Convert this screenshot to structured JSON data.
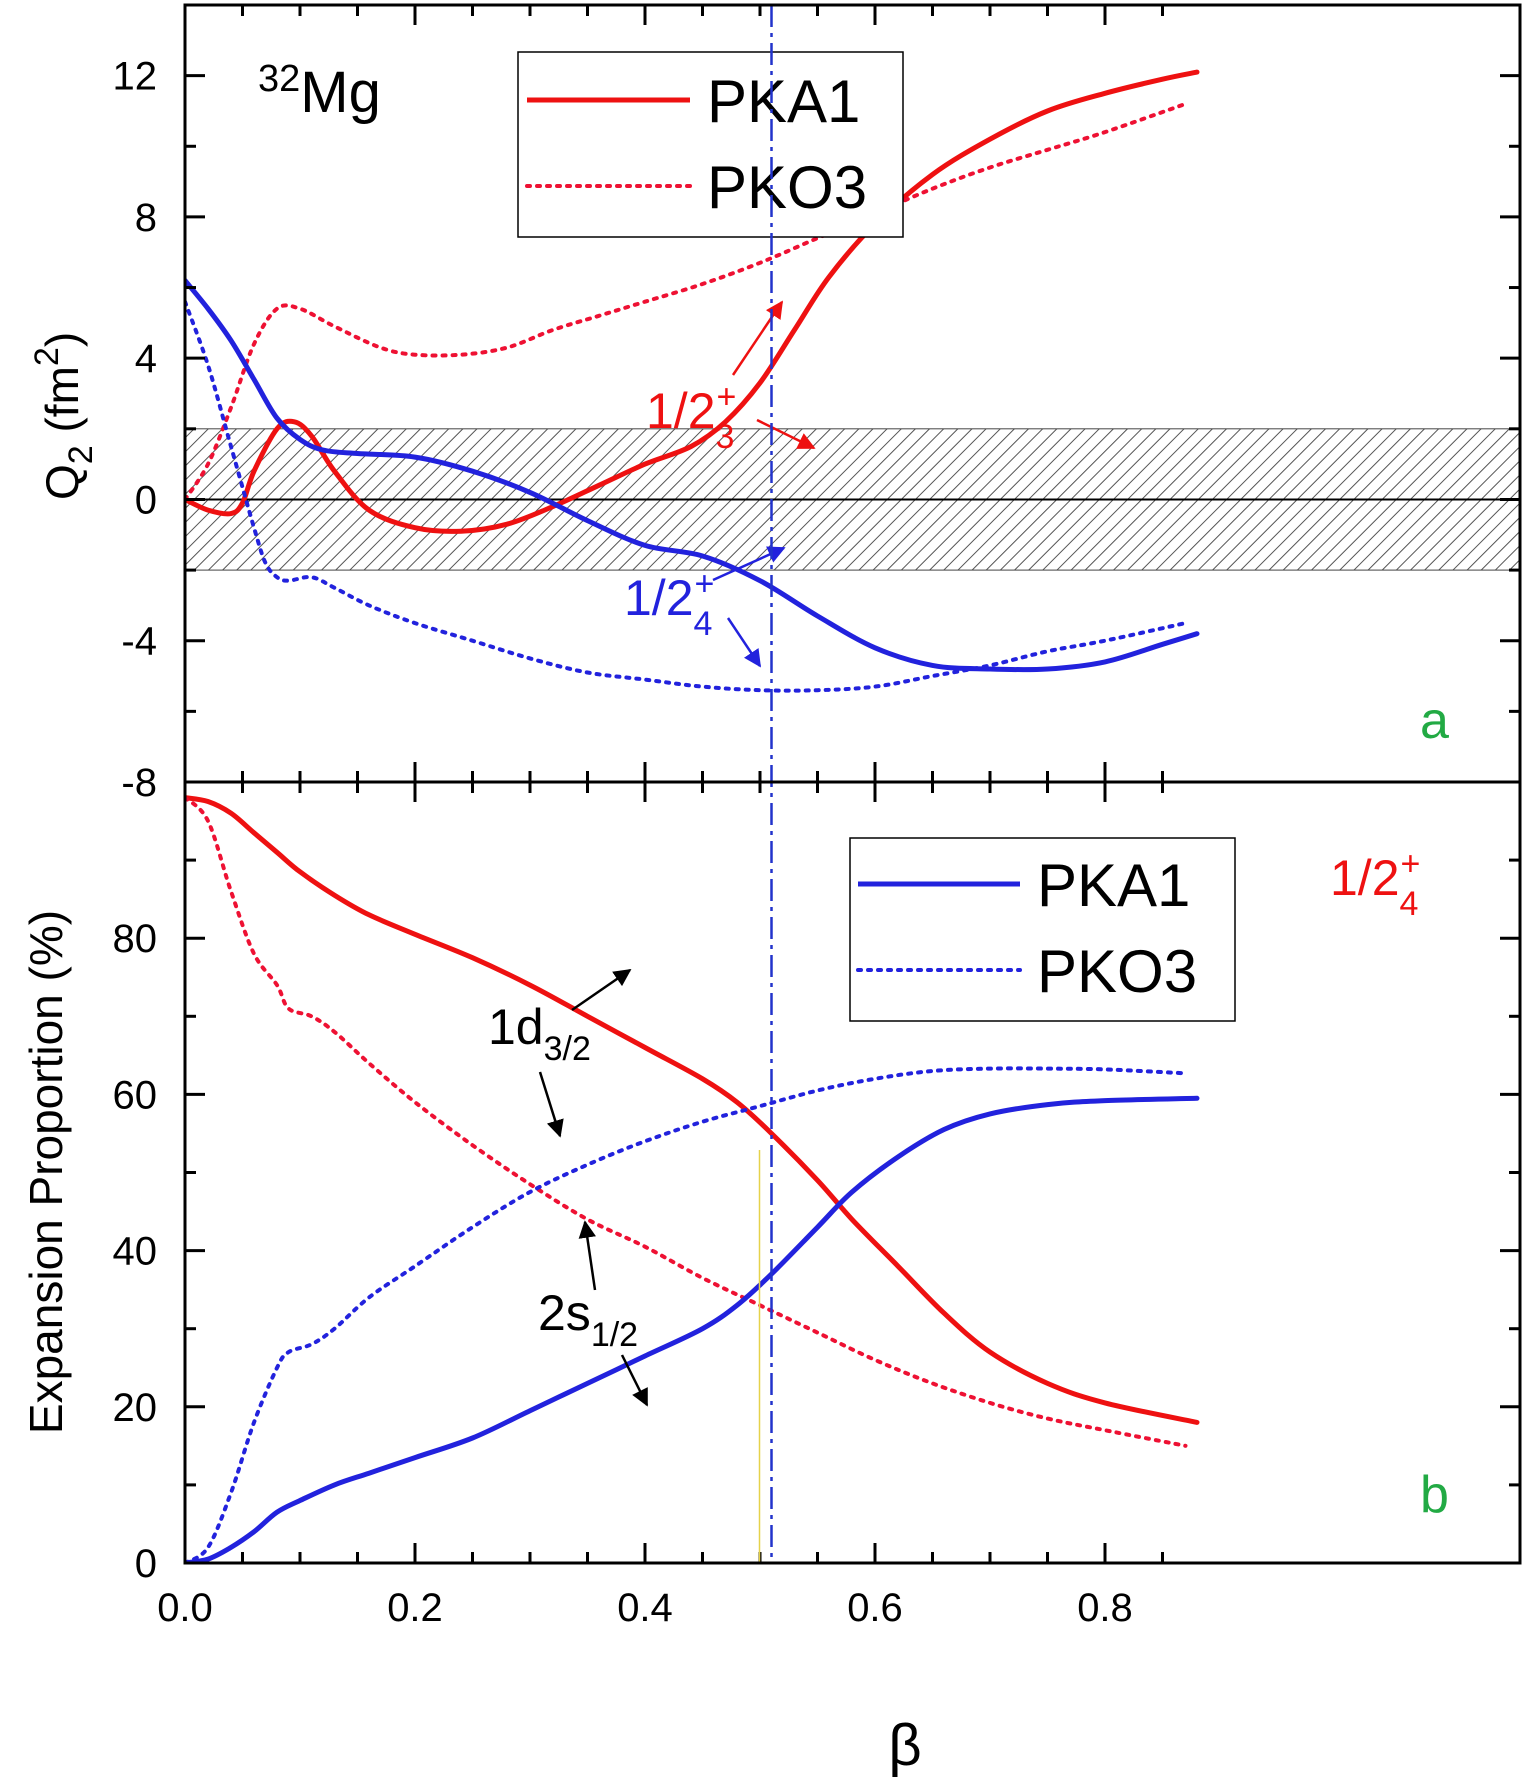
{
  "chart_data": [
    {
      "type": "line",
      "panel_label": "a",
      "nucleus": {
        "mass": "32",
        "element": "Mg"
      },
      "ylabel": {
        "main": "Q",
        "sub": "2",
        "unit_pre": " (fm",
        "unit_sup": "2",
        "unit_post": ")"
      },
      "ylim": [
        -8,
        14
      ],
      "yticks": [
        12,
        8,
        4,
        0,
        -4,
        -8
      ],
      "xlim": [
        0,
        0.89
      ],
      "shaded_band": [
        -2,
        2
      ],
      "legend": {
        "position": "top-center",
        "entries": [
          {
            "label": "PKA1",
            "style": "solid",
            "color": "#ee1111"
          },
          {
            "label": "PKO3",
            "style": "dotted",
            "color": "#ee1133"
          }
        ]
      },
      "annotations": [
        {
          "main": "1/2",
          "sub": "3",
          "sup": "+",
          "color": "#ee1111"
        },
        {
          "main": "1/2",
          "sub": "4",
          "sup": "+",
          "color": "#2222dd"
        }
      ],
      "series": [
        {
          "name": "PKA1",
          "state": "1/2_3+",
          "style": "solid",
          "color": "#ee1111",
          "x": [
            0,
            0.02,
            0.04,
            0.05,
            0.06,
            0.08,
            0.095,
            0.11,
            0.13,
            0.16,
            0.2,
            0.24,
            0.28,
            0.32,
            0.36,
            0.4,
            0.44,
            0.47,
            0.5,
            0.53,
            0.56,
            0.6,
            0.65,
            0.7,
            0.75,
            0.8,
            0.85,
            0.88
          ],
          "y": [
            0,
            -0.3,
            -0.4,
            -0.1,
            0.8,
            2.0,
            2.2,
            1.8,
            0.8,
            -0.3,
            -0.8,
            -0.9,
            -0.7,
            -0.2,
            0.4,
            1.0,
            1.5,
            2.2,
            3.3,
            4.8,
            6.3,
            7.8,
            9.2,
            10.2,
            11.0,
            11.5,
            11.9,
            12.1
          ]
        },
        {
          "name": "PKO3",
          "state": "1/2_3+",
          "style": "dotted",
          "color": "#ee1133",
          "x": [
            0,
            0.02,
            0.04,
            0.06,
            0.08,
            0.1,
            0.13,
            0.17,
            0.2,
            0.24,
            0.28,
            0.32,
            0.36,
            0.4,
            0.45,
            0.5,
            0.55,
            0.6,
            0.65,
            0.7,
            0.75,
            0.8,
            0.87
          ],
          "y": [
            0,
            1.0,
            2.6,
            4.4,
            5.4,
            5.4,
            4.9,
            4.3,
            4.1,
            4.1,
            4.3,
            4.8,
            5.2,
            5.6,
            6.1,
            6.7,
            7.4,
            8.1,
            8.8,
            9.4,
            9.9,
            10.4,
            11.2
          ]
        },
        {
          "name": "PKA1",
          "state": "1/2_4+",
          "style": "solid",
          "color": "#2222dd",
          "x": [
            0,
            0.02,
            0.04,
            0.06,
            0.08,
            0.1,
            0.12,
            0.15,
            0.2,
            0.25,
            0.3,
            0.35,
            0.4,
            0.45,
            0.5,
            0.55,
            0.6,
            0.65,
            0.7,
            0.75,
            0.8,
            0.85,
            0.88
          ],
          "y": [
            6.2,
            5.4,
            4.5,
            3.4,
            2.3,
            1.7,
            1.4,
            1.3,
            1.2,
            0.8,
            0.2,
            -0.6,
            -1.3,
            -1.6,
            -2.3,
            -3.3,
            -4.2,
            -4.7,
            -4.8,
            -4.8,
            -4.6,
            -4.1,
            -3.8
          ]
        },
        {
          "name": "PKO3",
          "state": "1/2_4+",
          "style": "dotted",
          "color": "#2222dd",
          "x": [
            0,
            0.02,
            0.04,
            0.06,
            0.07,
            0.08,
            0.09,
            0.11,
            0.13,
            0.16,
            0.2,
            0.25,
            0.3,
            0.35,
            0.4,
            0.45,
            0.5,
            0.55,
            0.6,
            0.65,
            0.7,
            0.75,
            0.8,
            0.87
          ],
          "y": [
            5.6,
            3.8,
            1.5,
            -0.8,
            -1.8,
            -2.2,
            -2.3,
            -2.2,
            -2.5,
            -3.0,
            -3.5,
            -4.0,
            -4.5,
            -4.9,
            -5.1,
            -5.3,
            -5.4,
            -5.4,
            -5.3,
            -5.0,
            -4.7,
            -4.3,
            -4.0,
            -3.5
          ]
        }
      ]
    },
    {
      "type": "line",
      "panel_label": "b",
      "ylabel": "Expansion Proportion (%)",
      "xlabel": "β",
      "state_label": {
        "main": "1/2",
        "sub": "4",
        "sup": "+",
        "color": "#ee1111"
      },
      "ylim": [
        0,
        100
      ],
      "yticks": [
        0,
        20,
        40,
        60,
        80
      ],
      "xlim": [
        0,
        0.89
      ],
      "xticks": [
        0.0,
        0.2,
        0.4,
        0.6,
        0.8
      ],
      "xtick_labels": [
        "0.0",
        "0.2",
        "0.4",
        "0.6",
        "0.8"
      ],
      "legend": {
        "position": "top-right",
        "entries": [
          {
            "label": "PKA1",
            "style": "solid",
            "color": "#2222dd"
          },
          {
            "label": "PKO3",
            "style": "dotted",
            "color": "#2222dd"
          }
        ]
      },
      "annotations": [
        {
          "main": "1d",
          "sub": "3/2",
          "color": "#000000"
        },
        {
          "main": "2s",
          "sub": "1/2",
          "color": "#000000"
        }
      ],
      "series": [
        {
          "name": "PKA1",
          "component": "1d3/2",
          "style": "solid",
          "color": "#ee1111",
          "x": [
            0,
            0.02,
            0.04,
            0.06,
            0.08,
            0.1,
            0.13,
            0.16,
            0.2,
            0.25,
            0.3,
            0.35,
            0.4,
            0.45,
            0.48,
            0.51,
            0.55,
            0.58,
            0.62,
            0.66,
            0.7,
            0.75,
            0.8,
            0.88
          ],
          "y": [
            98,
            97.5,
            96,
            93.5,
            91,
            88.5,
            85.5,
            83,
            80.5,
            77.5,
            74,
            70,
            66,
            62,
            59,
            55,
            49,
            44,
            38,
            32,
            27,
            23,
            20.5,
            18
          ]
        },
        {
          "name": "PKO3",
          "component": "1d3/2",
          "style": "dotted",
          "color": "#ee1133",
          "x": [
            0,
            0.02,
            0.04,
            0.06,
            0.08,
            0.09,
            0.11,
            0.13,
            0.16,
            0.2,
            0.25,
            0.3,
            0.35,
            0.4,
            0.45,
            0.5,
            0.55,
            0.6,
            0.65,
            0.7,
            0.75,
            0.8,
            0.87
          ],
          "y": [
            98,
            95,
            86,
            78,
            74,
            71,
            70,
            68,
            64,
            59,
            53.5,
            48.5,
            44,
            40.5,
            36.5,
            33,
            29.5,
            26,
            23,
            20.5,
            18.5,
            17,
            15
          ]
        },
        {
          "name": "PKA1",
          "component": "2s1/2",
          "style": "solid",
          "color": "#2222dd",
          "x": [
            0,
            0.02,
            0.04,
            0.06,
            0.08,
            0.1,
            0.13,
            0.16,
            0.2,
            0.25,
            0.3,
            0.35,
            0.4,
            0.45,
            0.48,
            0.51,
            0.55,
            0.58,
            0.62,
            0.66,
            0.7,
            0.75,
            0.8,
            0.88
          ],
          "y": [
            0,
            0.5,
            2,
            4,
            6.5,
            8,
            10,
            11.5,
            13.5,
            16,
            19.5,
            23,
            26.5,
            30,
            33,
            37,
            43,
            47.5,
            52,
            55.5,
            57.5,
            58.7,
            59.2,
            59.5
          ]
        },
        {
          "name": "PKO3",
          "component": "2s1/2",
          "style": "dotted",
          "color": "#2222dd",
          "x": [
            0,
            0.02,
            0.04,
            0.06,
            0.08,
            0.09,
            0.11,
            0.13,
            0.16,
            0.2,
            0.25,
            0.3,
            0.35,
            0.4,
            0.45,
            0.5,
            0.55,
            0.6,
            0.65,
            0.7,
            0.75,
            0.8,
            0.87
          ],
          "y": [
            0,
            2,
            9,
            18,
            25,
            27,
            28,
            30,
            34,
            38,
            43,
            47.5,
            51,
            54,
            56.5,
            58.5,
            60.5,
            62,
            63,
            63.3,
            63.3,
            63.2,
            62.7
          ]
        }
      ]
    }
  ],
  "reference_line": {
    "beta": 0.51,
    "color": "#2233cc",
    "style": "dash-dot"
  }
}
